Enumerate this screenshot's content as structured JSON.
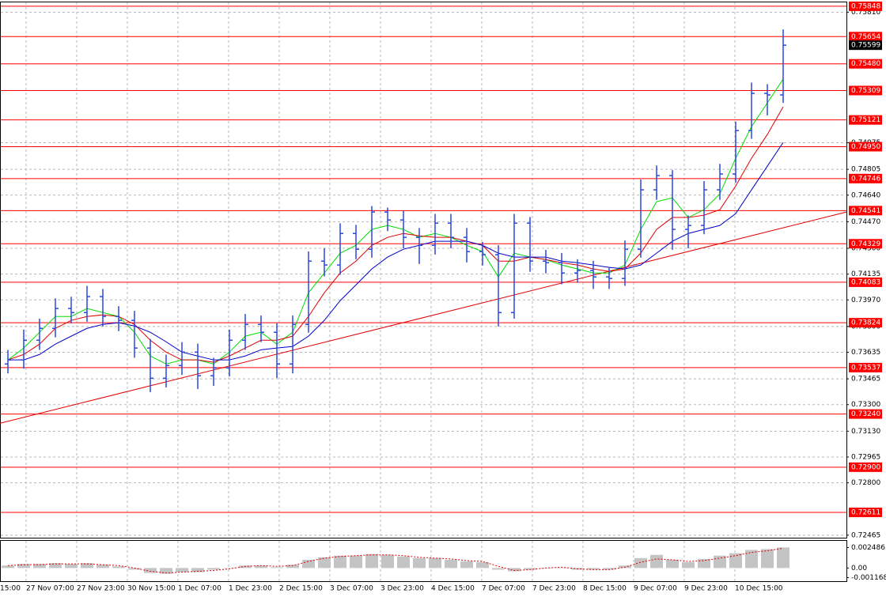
{
  "chart_data": {
    "type": "ohlc",
    "color": "#2a48e0",
    "open": [
      0.7356,
      0.73586,
      0.73712,
      0.73788,
      0.73915,
      0.73889,
      0.73991,
      0.73864,
      0.73839,
      0.73662,
      0.73469,
      0.7355,
      0.73636,
      0.73485,
      0.73535,
      0.73712,
      0.73813,
      0.73763,
      0.7356,
      0.73813,
      0.74218,
      0.74193,
      0.74395,
      0.74294,
      0.74532,
      0.74481,
      0.7437,
      0.74319,
      0.74461,
      0.7437,
      0.74279,
      0.74259,
      0.73889,
      0.74461,
      0.74218,
      0.74208,
      0.74142,
      0.74158,
      0.74117,
      0.74107,
      0.74294,
      0.74674,
      0.74765,
      0.74421,
      0.74446,
      0.74674,
      0.74775,
      0.75053,
      0.75291,
      0.75281
    ],
    "high": [
      0.7365,
      0.7378,
      0.7385,
      0.7398,
      0.7399,
      0.7406,
      0.7404,
      0.7393,
      0.739,
      0.7372,
      0.7362,
      0.737,
      0.7369,
      0.736,
      0.7378,
      0.7388,
      0.7387,
      0.7382,
      0.7387,
      0.7428,
      0.743,
      0.7446,
      0.7445,
      0.7457,
      0.7456,
      0.7454,
      0.7443,
      0.7452,
      0.7452,
      0.7443,
      0.7434,
      0.7432,
      0.7452,
      0.745,
      0.7429,
      0.7427,
      0.7423,
      0.7422,
      0.7418,
      0.7435,
      0.7474,
      0.7483,
      0.748,
      0.7451,
      0.7473,
      0.7484,
      0.7511,
      0.7536,
      0.7535,
      0.757
    ],
    "low": [
      0.735,
      0.7353,
      0.7365,
      0.7373,
      0.7382,
      0.7383,
      0.738,
      0.7377,
      0.736,
      0.7338,
      0.7341,
      0.7349,
      0.734,
      0.7342,
      0.7348,
      0.7365,
      0.737,
      0.7347,
      0.735,
      0.7376,
      0.7412,
      0.7413,
      0.7423,
      0.7424,
      0.7441,
      0.743,
      0.742,
      0.7426,
      0.743,
      0.7421,
      0.7419,
      0.738,
      0.7385,
      0.7415,
      0.7414,
      0.7407,
      0.7408,
      0.7404,
      0.7404,
      0.7406,
      0.7424,
      0.7461,
      0.7429,
      0.743,
      0.7439,
      0.7461,
      0.7472,
      0.75,
      0.7515,
      0.7523
    ],
    "close": [
      0.73586,
      0.73712,
      0.73788,
      0.73915,
      0.73889,
      0.73991,
      0.73864,
      0.73839,
      0.73662,
      0.73469,
      0.7355,
      0.73636,
      0.73485,
      0.73535,
      0.73712,
      0.73813,
      0.73763,
      0.7356,
      0.73813,
      0.74218,
      0.74193,
      0.74395,
      0.74294,
      0.74532,
      0.74481,
      0.7437,
      0.74319,
      0.74461,
      0.7437,
      0.74279,
      0.74259,
      0.73889,
      0.74461,
      0.74218,
      0.74208,
      0.74142,
      0.74158,
      0.74117,
      0.74107,
      0.74294,
      0.74674,
      0.74765,
      0.74421,
      0.74446,
      0.74674,
      0.74775,
      0.75053,
      0.75291,
      0.75281,
      0.75599
    ],
    "ma": [
      {
        "color": "#00dd00",
        "values": [
          0.73586,
          0.73662,
          0.73763,
          0.73864,
          0.73864,
          0.73915,
          0.73889,
          0.73864,
          0.73763,
          0.73611,
          0.7356,
          0.73586,
          0.73586,
          0.7356,
          0.73636,
          0.73738,
          0.73763,
          0.73687,
          0.73763,
          0.74016,
          0.74142,
          0.74269,
          0.74319,
          0.74421,
          0.74446,
          0.74421,
          0.7437,
          0.74395,
          0.7437,
          0.74319,
          0.74279,
          0.74117,
          0.74269,
          0.74244,
          0.74228,
          0.74193,
          0.74168,
          0.74142,
          0.74142,
          0.74193,
          0.74421,
          0.74598,
          0.74623,
          0.74497,
          0.74547,
          0.74648,
          0.74876,
          0.75078,
          0.7523,
          0.75382
        ]
      },
      {
        "color": "#e00000",
        "values": [
          0.73586,
          0.73621,
          0.73687,
          0.73788,
          0.73839,
          0.73864,
          0.73874,
          0.73864,
          0.73813,
          0.73712,
          0.73636,
          0.73586,
          0.73586,
          0.73571,
          0.73611,
          0.73662,
          0.73712,
          0.73712,
          0.73738,
          0.73864,
          0.74016,
          0.74142,
          0.74218,
          0.74319,
          0.7437,
          0.74395,
          0.7438,
          0.7437,
          0.7437,
          0.74345,
          0.74319,
          0.74218,
          0.74218,
          0.74244,
          0.74228,
          0.74208,
          0.74193,
          0.74168,
          0.74152,
          0.74168,
          0.74269,
          0.74421,
          0.74497,
          0.74497,
          0.74512,
          0.74547,
          0.74699,
          0.74876,
          0.75028,
          0.75205
        ]
      },
      {
        "color": "#0000cc",
        "values": [
          0.73586,
          0.73586,
          0.73621,
          0.73687,
          0.73738,
          0.73788,
          0.73813,
          0.73824,
          0.73803,
          0.73763,
          0.73702,
          0.73636,
          0.73611,
          0.73586,
          0.73586,
          0.73611,
          0.73651,
          0.73662,
          0.73672,
          0.73738,
          0.73839,
          0.73965,
          0.74066,
          0.74168,
          0.74244,
          0.74294,
          0.74319,
          0.74345,
          0.74345,
          0.74345,
          0.74319,
          0.74269,
          0.74244,
          0.74244,
          0.74244,
          0.74218,
          0.74208,
          0.74193,
          0.74178,
          0.74168,
          0.74193,
          0.74269,
          0.74345,
          0.74395,
          0.74421,
          0.74446,
          0.74522,
          0.74674,
          0.74825,
          0.74977
        ]
      }
    ],
    "trendline": {
      "color": "#e00000",
      "x": [
        -0.5,
        53
      ],
      "y": [
        0.73181,
        0.74532
      ]
    },
    "ylim": [
      0.72449,
      0.75878
    ],
    "grid": true,
    "yticks": [
      {
        "value": 0.7581,
        "label": "0.75810"
      },
      {
        "value": 0.74975,
        "label": "0.74975"
      },
      {
        "value": 0.74805,
        "label": "0.74805"
      },
      {
        "value": 0.7464,
        "label": "0.74640"
      },
      {
        "value": 0.7447,
        "label": "0.74470"
      },
      {
        "value": 0.743,
        "label": "0.74300"
      },
      {
        "value": 0.74135,
        "label": "0.74135"
      },
      {
        "value": 0.7397,
        "label": "0.73970"
      },
      {
        "value": 0.738,
        "label": "0.73800"
      },
      {
        "value": 0.73635,
        "label": "0.73635"
      },
      {
        "value": 0.73465,
        "label": "0.73465"
      },
      {
        "value": 0.733,
        "label": "0.73300"
      },
      {
        "value": 0.7313,
        "label": "0.73130"
      },
      {
        "value": 0.72965,
        "label": "0.72965"
      },
      {
        "value": 0.728,
        "label": "0.72800"
      },
      {
        "value": 0.72465,
        "label": "0.72465"
      }
    ],
    "level_color": "#ff0000",
    "levels": [
      {
        "value": 0.75848,
        "label": "0.75848"
      },
      {
        "value": 0.75654,
        "label": "0.75654"
      },
      {
        "value": 0.7548,
        "label": "0.75480"
      },
      {
        "value": 0.75309,
        "label": "0.75309"
      },
      {
        "value": 0.75121,
        "label": "0.75121"
      },
      {
        "value": 0.7495,
        "label": "0.74950"
      },
      {
        "value": 0.74746,
        "label": "0.74746"
      },
      {
        "value": 0.74541,
        "label": "0.74541"
      },
      {
        "value": 0.74329,
        "label": "0.74329"
      },
      {
        "value": 0.74083,
        "label": "0.74083"
      },
      {
        "value": 0.73824,
        "label": "0.73824"
      },
      {
        "value": 0.73537,
        "label": "0.73537"
      },
      {
        "value": 0.7324,
        "label": "0.73240"
      },
      {
        "value": 0.729,
        "label": "0.72900"
      },
      {
        "value": 0.72611,
        "label": "0.72611"
      }
    ],
    "current_price": 0.75599,
    "xlabels": [
      "15:00",
      "27 Nov 07:00",
      "27 Nov 23:00",
      "30 Nov 15:00",
      "1 Dec 07:00",
      "1 Dec 23:00",
      "2 Dec 15:00",
      "3 Dec 07:00",
      "3 Dec 23:00",
      "4 Dec 15:00",
      "7 Dec 07:00",
      "7 Dec 23:00",
      "8 Dec 15:00",
      "9 Dec 07:00",
      "9 Dec 23:00",
      "10 Dec 15:00"
    ],
    "sub": {
      "ylim": [
        -0.0016,
        0.0033
      ],
      "yticks": [
        0.002486,
        {
          "value": 0,
          "label": "0.00"
        },
        -0.001168
      ],
      "histogram_color": "#c4c4c4",
      "signal_color": "#e00000",
      "histogram": [
        0.0003,
        0.0005,
        0.0005,
        0.0006,
        0.0005,
        0.0006,
        0.0004,
        0.0002,
        -0.0002,
        -0.0006,
        -0.0007,
        -0.0005,
        -0.0005,
        -0.0002,
        0,
        0.0003,
        0.0003,
        0.0001,
        0.0004,
        0.001,
        0.0013,
        0.0015,
        0.0015,
        0.0017,
        0.0016,
        0.0014,
        0.0012,
        0.0012,
        0.001,
        0.0008,
        0.0007,
        -0.0002,
        -0.0004,
        -0.0002,
        0,
        0,
        -0.0002,
        -0.0002,
        -0.0002,
        0.0003,
        0.0012,
        0.0016,
        0.001,
        0.0007,
        0.0011,
        0.0015,
        0.0018,
        0.0022,
        0.0023,
        0.0025
      ],
      "signal": [
        0.0003,
        0.0004,
        0.0004,
        0.0005,
        0.0005,
        0.0005,
        0.0004,
        0.0003,
        0,
        -0.0004,
        -0.0006,
        -0.0005,
        -0.0004,
        -0.0003,
        -0.0001,
        0.0002,
        0.0003,
        0.0002,
        0.0003,
        0.0008,
        0.0012,
        0.0014,
        0.0015,
        0.0016,
        0.0016,
        0.0015,
        0.0013,
        0.0012,
        0.0011,
        0.0009,
        0.0008,
        0.0002,
        -0.0003,
        -0.0002,
        0,
        0.0001,
        -0.0001,
        -0.0002,
        -0.0002,
        0.0001,
        0.0007,
        0.0011,
        0.001,
        0.0008,
        0.0009,
        0.0012,
        0.0015,
        0.0019,
        0.0021,
        0.0024
      ]
    }
  }
}
